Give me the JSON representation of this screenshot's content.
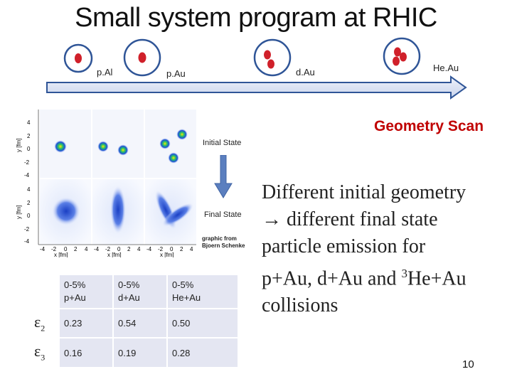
{
  "title": "Small system program at RHIC",
  "systems": [
    {
      "label": "p.Al"
    },
    {
      "label": "p.Au"
    },
    {
      "label": "d.Au"
    },
    {
      "label": "He.Au"
    }
  ],
  "scan_label": "Geometry Scan",
  "plot": {
    "initial_label": "Initial State",
    "final_label": "Final State",
    "credit_line1": "graphic from",
    "credit_line2": "Bjoern Schenke",
    "y_axis_label": "y [fm]",
    "x_axis_label": "x [fm]",
    "y_ticks": [
      "4",
      "2",
      "0",
      "-2",
      "-4"
    ],
    "x_ticks": [
      "-4",
      "-2",
      "0",
      "2",
      "4"
    ]
  },
  "description": {
    "line1": "Different initial geometry",
    "line2_arrow": "→",
    "line2_text": "different final state",
    "line3": "particle emission for",
    "line4_pre": "p+Au, d+Au and ",
    "line4_sup": "3",
    "line4_post": "He+Au",
    "line5": "collisions"
  },
  "table": {
    "headers": [
      {
        "top": "0-5%",
        "bottom": "p+Au"
      },
      {
        "top": "0-5%",
        "bottom": "d+Au"
      },
      {
        "top": "0-5%",
        "bottom": "He+Au"
      }
    ],
    "rows": [
      {
        "symbol": "ε",
        "sub": "2",
        "values": [
          "0.23",
          "0.54",
          "0.50"
        ]
      },
      {
        "symbol": "ε",
        "sub": "3",
        "values": [
          "0.16",
          "0.19",
          "0.28"
        ]
      }
    ]
  },
  "page_number": "10",
  "colors": {
    "arrow_fill": "#2f5597",
    "arrow_border": "#2f5597",
    "arrow_face": "#dfe6f4",
    "nucleus_red": "#d0202a",
    "scan_red": "#c00000",
    "table_cell": "#e4e6f2",
    "down_arrow": "#5b7fbf"
  }
}
